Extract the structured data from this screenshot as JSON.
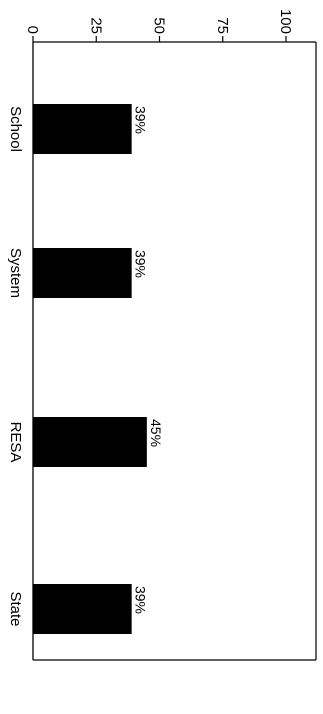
{
  "chart_data": {
    "type": "bar",
    "orientation": "horizontal",
    "categories": [
      "School",
      "System",
      "RESA",
      "State"
    ],
    "values": [
      39,
      39,
      45,
      39
    ],
    "data_labels": [
      "39%",
      "39%",
      "45%",
      "39%"
    ],
    "xlim": [
      0,
      100
    ],
    "ticks": [
      "0",
      "25",
      "50",
      "75",
      "100"
    ],
    "title": "",
    "xlabel": "",
    "ylabel": "",
    "grid": false,
    "bar_color": "#000000",
    "rotation": "90deg clockwise"
  }
}
